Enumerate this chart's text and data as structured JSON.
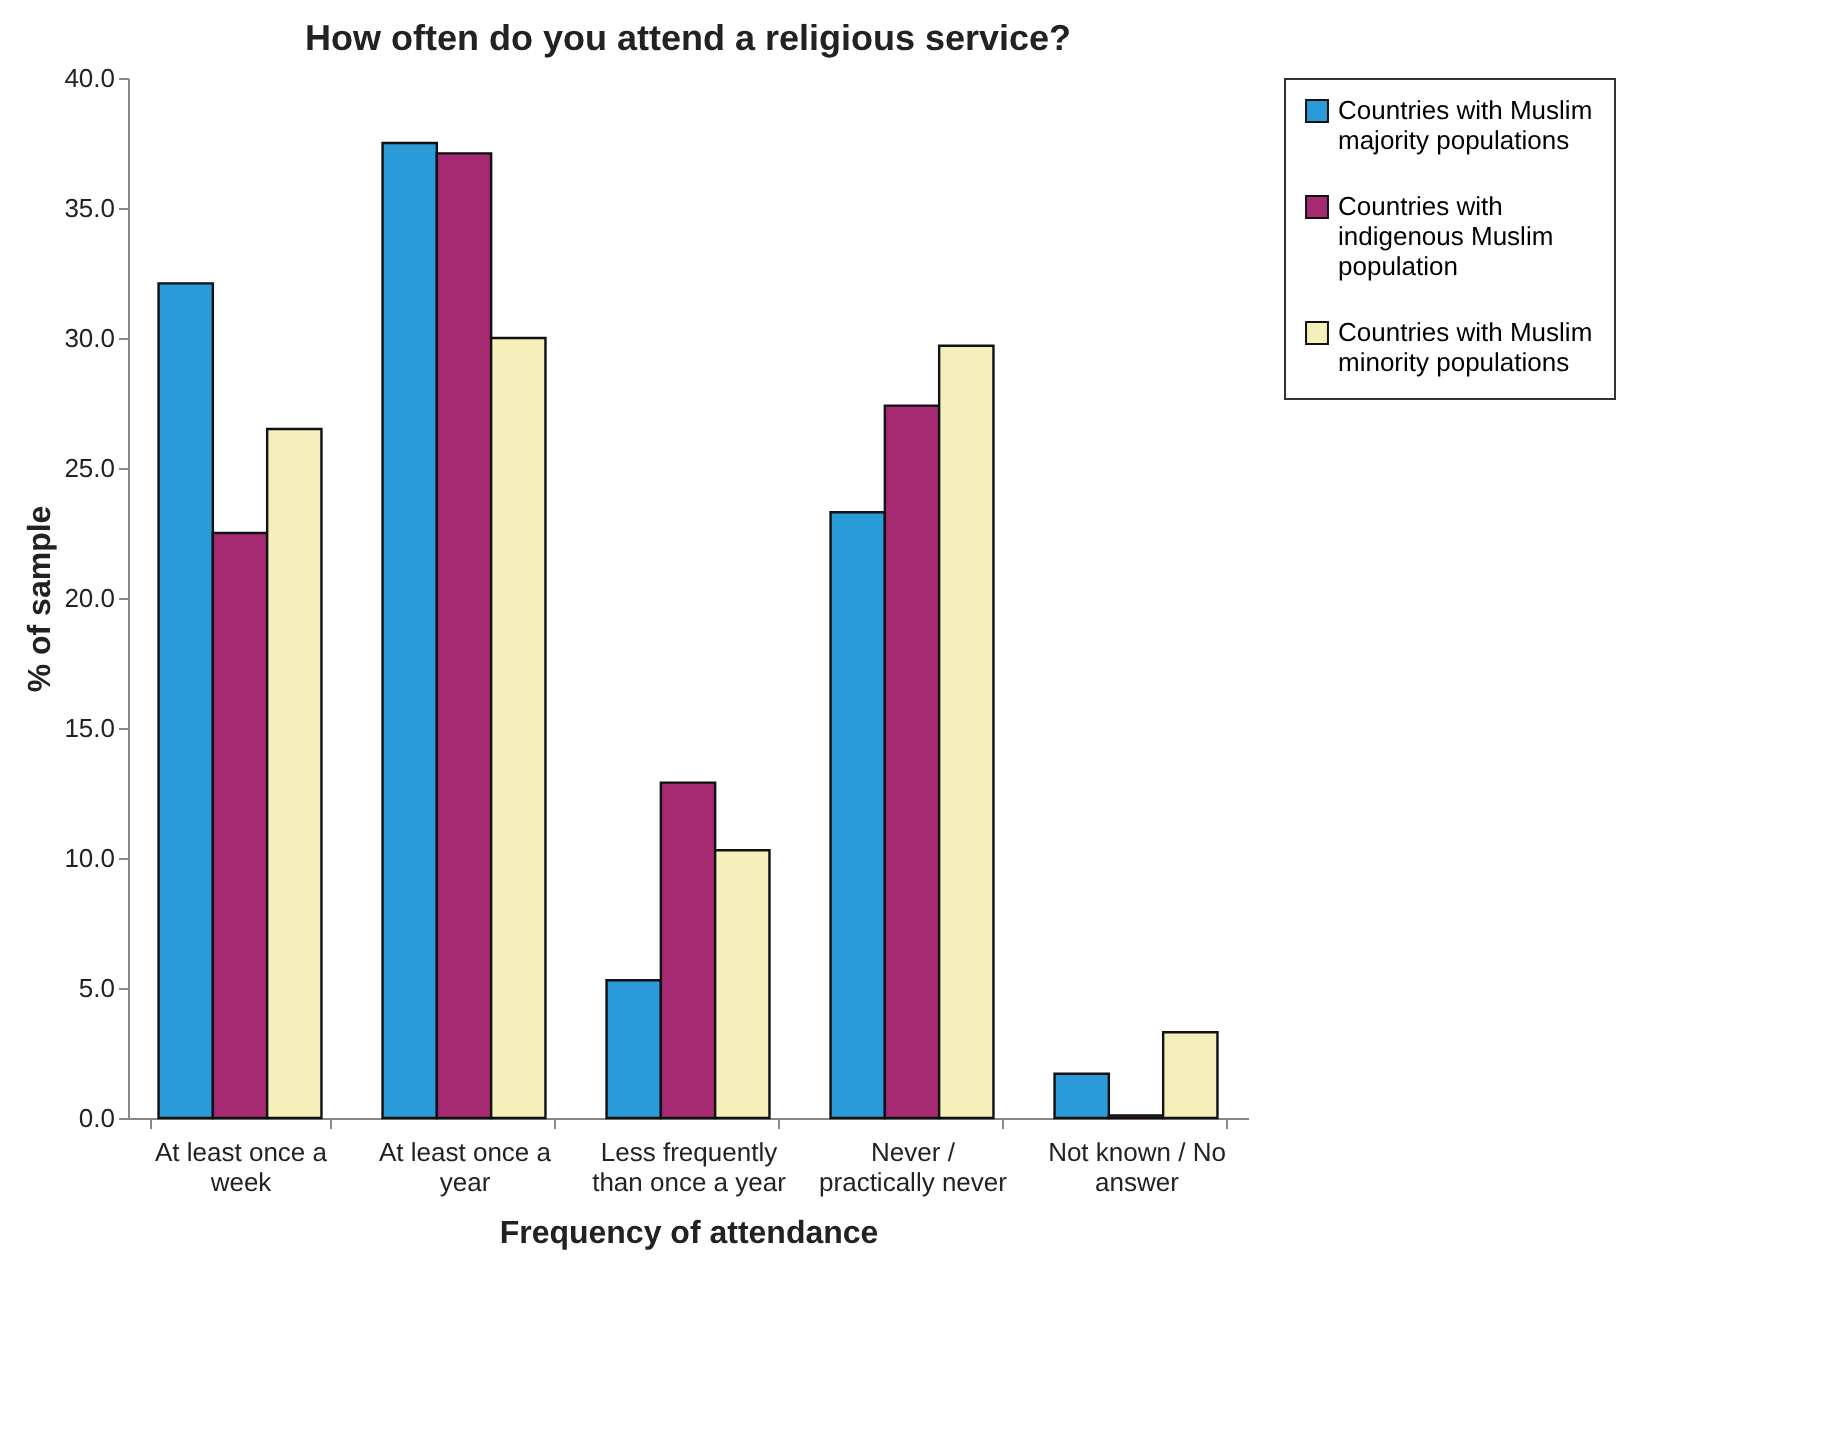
{
  "chart_data": {
    "type": "bar",
    "title": "How often do you attend a religious service?",
    "xlabel": "Frequency of attendance",
    "ylabel": "% of sample",
    "categories": [
      "At least once a week",
      "At least once a year",
      "Less frequently than once a year",
      "Never / practically never",
      "Not known / No answer"
    ],
    "series": [
      {
        "name": "Countries with Muslim majority populations",
        "color": "#2b9ad8",
        "values": [
          32.1,
          37.5,
          5.3,
          23.3,
          1.7
        ]
      },
      {
        "name": "Countries with indigenous Muslim population",
        "color": "#a52a72",
        "values": [
          22.5,
          37.1,
          12.9,
          27.4,
          0.1
        ]
      },
      {
        "name": "Countries with Muslim minority populations",
        "color": "#f5f0bb",
        "values": [
          26.5,
          30.0,
          10.3,
          29.7,
          3.3
        ]
      }
    ],
    "ylim": [
      0,
      40
    ],
    "yticks": [
      {
        "value": 0,
        "label": "0.0"
      },
      {
        "value": 5,
        "label": "5.0"
      },
      {
        "value": 10,
        "label": "10.0"
      },
      {
        "value": 15,
        "label": "15.0"
      },
      {
        "value": 20,
        "label": "20.0"
      },
      {
        "value": 25,
        "label": "25.0"
      },
      {
        "value": 30,
        "label": "30.0"
      },
      {
        "value": 35,
        "label": "35.0"
      },
      {
        "value": 40,
        "label": "40.0"
      }
    ],
    "grid": false,
    "legend": "right"
  }
}
